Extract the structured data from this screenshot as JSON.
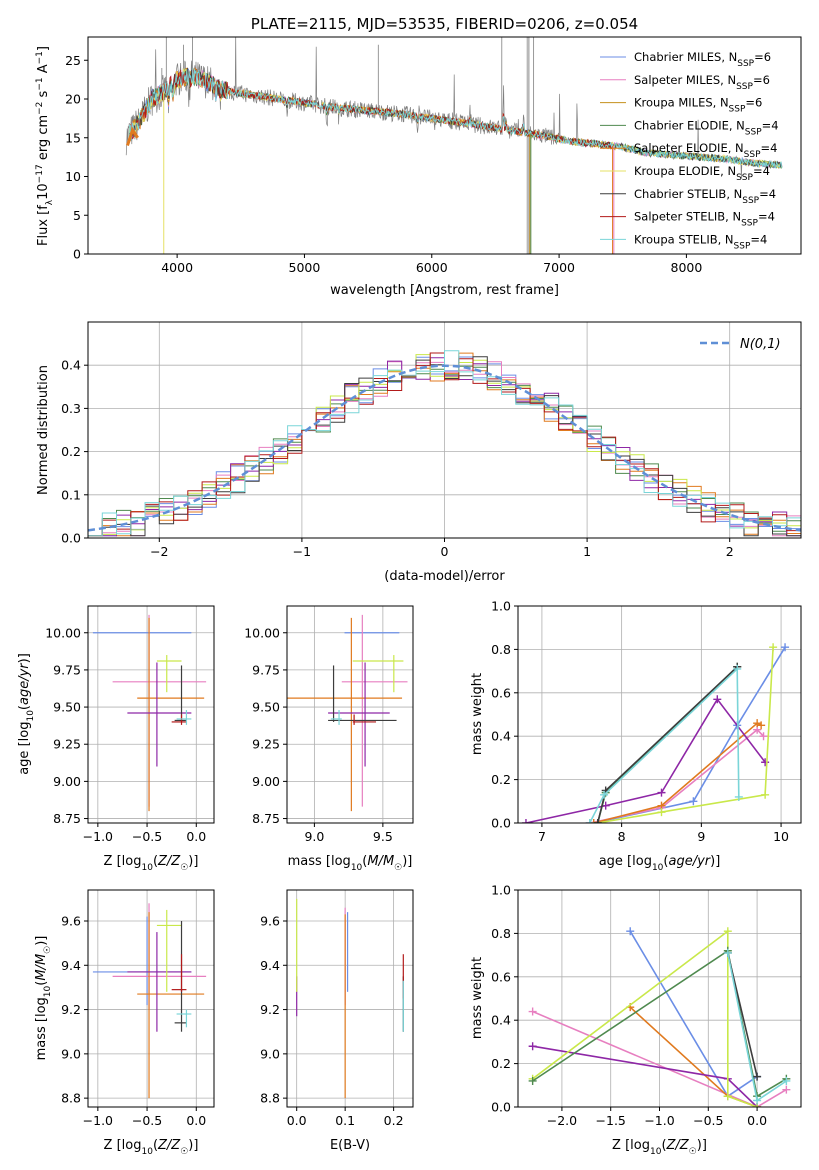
{
  "colors": {
    "blue": "#6b8ee6",
    "pink": "#e77fc0",
    "orange": "#e07a1f",
    "green": "#4f8a4f",
    "purple": "#8e27a6",
    "lime": "#c9e84a",
    "dark": "#3d3d3d",
    "red": "#b21a1a",
    "cyan": "#7ad5d8",
    "grid": "#b0b0b0",
    "spectrum": "#7f7f7f"
  },
  "chart_data": [
    {
      "type": "line",
      "title": "PLATE=2115, MJD=53535, FIBERID=0206, z=0.054",
      "xlabel": "wavelength [Angstrom, rest frame]",
      "ylabel": "Flux [fλ10⁻¹⁷ erg cm⁻² s⁻¹ A⁻¹]",
      "xlim": [
        3300,
        8900
      ],
      "ylim": [
        0,
        28
      ],
      "xticks": [
        4000,
        5000,
        6000,
        7000,
        8000
      ],
      "yticks": [
        0,
        5,
        10,
        15,
        20,
        25
      ],
      "grid": false,
      "legend_position": "upper-right",
      "legend": [
        {
          "label": "Chabrier MILES, NSSP=6",
          "color": "#6b8ee6"
        },
        {
          "label": "Salpeter MILES, NSSP=6",
          "color": "#e77fc0"
        },
        {
          "label": "Kroupa MILES, NSSP=6",
          "color": "#c4901c"
        },
        {
          "label": "Chabrier ELODIE, NSSP=4",
          "color": "#4f8a4f"
        },
        {
          "label": "Salpeter ELODIE, NSSP=4",
          "color": "#e07a1f"
        },
        {
          "label": "Kroupa ELODIE, NSSP=4",
          "color": "#e6e065"
        },
        {
          "label": "Chabrier STELIB, NSSP=4",
          "color": "#3d3d3d"
        },
        {
          "label": "Salpeter STELIB, NSSP=4",
          "color": "#b21a1a"
        },
        {
          "label": "Kroupa STELIB, NSSP=4",
          "color": "#7ad5d8"
        }
      ],
      "continuum": [
        [
          3600,
          15
        ],
        [
          3700,
          17
        ],
        [
          3800,
          20
        ],
        [
          3900,
          21
        ],
        [
          4000,
          22.5
        ],
        [
          4100,
          23
        ],
        [
          4200,
          22.5
        ],
        [
          4400,
          21
        ],
        [
          4600,
          20.5
        ],
        [
          4800,
          20
        ],
        [
          5000,
          19.5
        ],
        [
          5200,
          19
        ],
        [
          5500,
          18.5
        ],
        [
          5800,
          18
        ],
        [
          6000,
          17.5
        ],
        [
          6300,
          16.8
        ],
        [
          6600,
          16
        ],
        [
          6900,
          15.2
        ],
        [
          7100,
          14.5
        ],
        [
          7300,
          14.2
        ],
        [
          7500,
          13.8
        ],
        [
          7700,
          13
        ],
        [
          7900,
          12.8
        ],
        [
          8100,
          12.5
        ],
        [
          8300,
          12.3
        ],
        [
          8500,
          11.8
        ],
        [
          8700,
          11.5
        ]
      ]
    },
    {
      "type": "line",
      "xlabel": "(data-model)/error",
      "ylabel": "Normed distribution",
      "xlim": [
        -2.5,
        2.5
      ],
      "ylim": [
        0,
        0.5
      ],
      "xticks": [
        -2,
        -1,
        0,
        1,
        2
      ],
      "yticks": [
        0,
        0.1,
        0.2,
        0.3,
        0.4
      ],
      "grid": true,
      "legend_position": "upper-right",
      "legend": [
        {
          "label": "N(0,1)",
          "color": "#5f8fd6"
        }
      ],
      "hist_edges_start": -2.5,
      "hist_bin_width": 0.1
    },
    {
      "type": "scatter",
      "xlabel": "Z [log₁₀(Z/Z☉)]",
      "ylabel": "age  [log₁₀(age/yr)]",
      "xlim": [
        -1.1,
        0.18
      ],
      "ylim": [
        8.72,
        10.18
      ],
      "xticks": [
        -1.0,
        -0.5,
        0.0
      ],
      "yticks": [
        8.75,
        9.0,
        9.25,
        9.5,
        9.75,
        10.0
      ],
      "grid": true
    },
    {
      "type": "scatter",
      "xlabel": "mass [log₁₀(M/M☉)]",
      "xlim": [
        8.8,
        9.72
      ],
      "ylim": [
        8.72,
        10.18
      ],
      "xticks": [
        9.0,
        9.5
      ],
      "yticks": [
        8.75,
        9.0,
        9.25,
        9.5,
        9.75,
        10.0
      ],
      "grid": true
    },
    {
      "type": "line",
      "xlabel": "age  [log₁₀(age/yr)]",
      "ylabel": "mass weight",
      "xlim": [
        6.7,
        10.25
      ],
      "ylim": [
        0,
        1.0
      ],
      "xticks": [
        7,
        8,
        9,
        10
      ],
      "yticks": [
        0,
        0.2,
        0.4,
        0.6,
        0.8,
        1.0
      ],
      "grid": true
    },
    {
      "type": "scatter",
      "xlabel": "Z [log₁₀(Z/Z☉)]",
      "ylabel": "mass [log₁₀(M/M☉)]",
      "xlim": [
        -1.1,
        0.18
      ],
      "ylim": [
        8.76,
        9.74
      ],
      "xticks": [
        -1.0,
        -0.5,
        0.0
      ],
      "yticks": [
        8.8,
        9.0,
        9.2,
        9.4,
        9.6
      ],
      "grid": true
    },
    {
      "type": "scatter",
      "xlabel": "E(B-V)",
      "xlim": [
        -0.02,
        0.24
      ],
      "ylim": [
        8.76,
        9.74
      ],
      "xticks": [
        0.0,
        0.1,
        0.2
      ],
      "yticks": [
        8.8,
        9.0,
        9.2,
        9.4,
        9.6
      ],
      "grid": true
    },
    {
      "type": "line",
      "xlabel": "Z [log₁₀(Z/Z☉)]",
      "ylabel": "mass weight",
      "xlim": [
        -2.45,
        0.45
      ],
      "ylim": [
        0,
        1.0
      ],
      "xticks": [
        -2.0,
        -1.5,
        -1.0,
        -0.5,
        0.0
      ],
      "yticks": [
        0,
        0.2,
        0.4,
        0.6,
        0.8,
        1.0
      ],
      "grid": true
    }
  ],
  "model_fits": [
    {
      "color": "#6b8ee6",
      "Z": -0.5,
      "Zlo": -1.05,
      "Zhi": -0.05,
      "age": 10.0,
      "agelo": 10.0,
      "agehi": 10.0,
      "mass": 9.37,
      "masslo": 9.22,
      "masshi": 9.62,
      "ebv": 0.105,
      "ebvlo": 9.28,
      "ebvhi": 9.64
    },
    {
      "color": "#e77fc0",
      "Z": -0.48,
      "Zlo": -0.85,
      "Zhi": 0.1,
      "age": 9.67,
      "agelo": 8.83,
      "agehi": 10.12,
      "mass": 9.35,
      "masslo": 9.2,
      "masshi": 9.68,
      "ebv": 0.1,
      "ebvlo": 9.22,
      "ebvhi": 9.66
    },
    {
      "color": "#e07a1f",
      "Z": -0.48,
      "Zlo": -0.6,
      "Zhi": 0.08,
      "age": 9.56,
      "agelo": 8.8,
      "agehi": 10.1,
      "mass": 9.27,
      "masslo": 8.8,
      "masshi": 9.64,
      "ebv": 0.1,
      "ebvlo": 8.8,
      "ebvhi": 9.63
    },
    {
      "color": "#8e27a6",
      "Z": -0.4,
      "Zlo": -0.7,
      "Zhi": -0.05,
      "age": 9.46,
      "agelo": 9.1,
      "agehi": 9.8,
      "mass": 9.37,
      "masslo": 9.1,
      "masshi": 9.55,
      "ebv": 0.0,
      "ebvlo": 9.17,
      "ebvhi": 9.35
    },
    {
      "color": "#c9e84a",
      "Z": -0.3,
      "Zlo": -0.4,
      "Zhi": -0.15,
      "age": 9.81,
      "agelo": 9.6,
      "agehi": 9.85,
      "mass": 9.58,
      "masslo": 9.28,
      "masshi": 9.65,
      "ebv": 0.0,
      "ebvlo": 9.28,
      "ebvhi": 9.7
    },
    {
      "color": "#3d3d3d",
      "Z": -0.15,
      "Zlo": -0.22,
      "Zhi": -0.1,
      "age": 9.41,
      "agelo": 9.4,
      "agehi": 9.78,
      "mass": 9.14,
      "masslo": 9.1,
      "masshi": 9.6,
      "ebv": 0.22,
      "ebvlo": 9.1,
      "ebvhi": 9.35
    },
    {
      "color": "#b21a1a",
      "Z": -0.15,
      "Zlo": -0.25,
      "Zhi": -0.1,
      "age": 9.4,
      "agelo": 9.38,
      "agehi": 9.45,
      "mass": 9.29,
      "masslo": 9.28,
      "masshi": 9.45,
      "ebv": 0.22,
      "ebvlo": 9.25,
      "ebvhi": 9.45
    },
    {
      "color": "#7ad5d8",
      "Z": -0.1,
      "Zlo": -0.2,
      "Zhi": -0.05,
      "age": 9.42,
      "agelo": 9.38,
      "agehi": 9.48,
      "mass": 9.18,
      "masslo": 9.12,
      "masshi": 9.2,
      "ebv": 0.22,
      "ebvlo": 9.1,
      "ebvhi": 9.33
    }
  ],
  "age_weights": [
    {
      "color": "#6b8ee6",
      "points": [
        [
          7.65,
          0.0
        ],
        [
          8.9,
          0.1
        ],
        [
          9.45,
          0.45
        ],
        [
          10.05,
          0.81
        ]
      ]
    },
    {
      "color": "#e77fc0",
      "points": [
        [
          7.6,
          0.0
        ],
        [
          8.5,
          0.07
        ],
        [
          9.7,
          0.43
        ],
        [
          9.78,
          0.4
        ]
      ]
    },
    {
      "color": "#e07a1f",
      "points": [
        [
          7.65,
          0.0
        ],
        [
          8.5,
          0.08
        ],
        [
          9.7,
          0.46
        ],
        [
          9.75,
          0.45
        ]
      ]
    },
    {
      "color": "#8e27a6",
      "points": [
        [
          6.8,
          0.0
        ],
        [
          7.8,
          0.08
        ],
        [
          8.5,
          0.14
        ],
        [
          9.2,
          0.57
        ],
        [
          9.8,
          0.28
        ]
      ]
    },
    {
      "color": "#c9e84a",
      "points": [
        [
          7.7,
          0.0
        ],
        [
          8.5,
          0.05
        ],
        [
          9.8,
          0.13
        ],
        [
          9.9,
          0.81
        ]
      ]
    },
    {
      "color": "#4f8a4f",
      "points": [
        [
          7.7,
          0.0
        ],
        [
          7.8,
          0.14
        ],
        [
          9.45,
          0.72
        ]
      ]
    },
    {
      "color": "#3d3d3d",
      "points": [
        [
          7.7,
          0.0
        ],
        [
          7.8,
          0.15
        ],
        [
          9.45,
          0.72
        ]
      ]
    },
    {
      "color": "#7ad5d8",
      "points": [
        [
          7.6,
          0.0
        ],
        [
          7.78,
          0.13
        ],
        [
          9.45,
          0.71
        ],
        [
          9.47,
          0.12
        ]
      ]
    }
  ],
  "z_weights": [
    {
      "color": "#6b8ee6",
      "points": [
        [
          -1.3,
          0.81
        ],
        [
          -0.3,
          0.05
        ],
        [
          0.0,
          0.14
        ]
      ]
    },
    {
      "color": "#e77fc0",
      "points": [
        [
          -2.3,
          0.44
        ],
        [
          0.0,
          0.0
        ],
        [
          0.3,
          0.08
        ]
      ]
    },
    {
      "color": "#e07a1f",
      "points": [
        [
          -1.3,
          0.46
        ],
        [
          -0.3,
          0.05
        ],
        [
          0.0,
          0.0
        ]
      ]
    },
    {
      "color": "#8e27a6",
      "points": [
        [
          -2.3,
          0.28
        ],
        [
          -0.3,
          0.13
        ],
        [
          0.0,
          0.0
        ]
      ]
    },
    {
      "color": "#c9e84a",
      "points": [
        [
          -2.3,
          0.13
        ],
        [
          -0.3,
          0.81
        ],
        [
          -0.3,
          0.05
        ],
        [
          0.0,
          0.0
        ]
      ]
    },
    {
      "color": "#4f8a4f",
      "points": [
        [
          -2.3,
          0.12
        ],
        [
          -0.3,
          0.72
        ],
        [
          0.0,
          0.05
        ],
        [
          0.3,
          0.13
        ]
      ]
    },
    {
      "color": "#3d3d3d",
      "points": [
        [
          -0.3,
          0.71
        ],
        [
          0.0,
          0.14
        ]
      ]
    },
    {
      "color": "#7ad5d8",
      "points": [
        [
          -0.3,
          0.71
        ],
        [
          0.0,
          0.03
        ],
        [
          0.3,
          0.12
        ]
      ]
    }
  ]
}
